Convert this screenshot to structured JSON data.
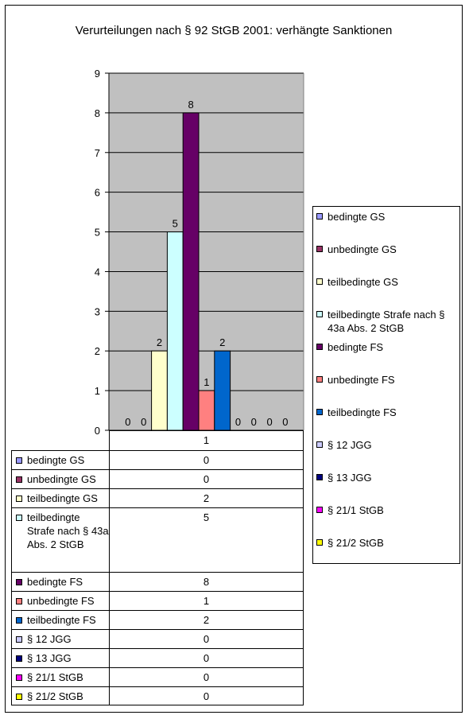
{
  "chart_data": {
    "type": "bar",
    "title": "Verurteilungen nach § 92 StGB 2001: verhängte Sanktionen",
    "categories": [
      "1"
    ],
    "ylim": [
      0,
      9
    ],
    "yticks": [
      "0",
      "1",
      "2",
      "3",
      "4",
      "5",
      "6",
      "7",
      "8",
      "9"
    ],
    "grid": true,
    "legend_position": "right",
    "series": [
      {
        "name": "bedingte GS",
        "values": [
          0
        ],
        "color": "#9999ff"
      },
      {
        "name": "unbedingte GS",
        "values": [
          0
        ],
        "color": "#993366"
      },
      {
        "name": "teilbedingte GS",
        "values": [
          2
        ],
        "color": "#ffffcc"
      },
      {
        "name": "teilbedingte Strafe nach § 43a Abs. 2 StGB",
        "values": [
          5
        ],
        "color": "#ccffff"
      },
      {
        "name": "bedingte FS",
        "values": [
          8
        ],
        "color": "#660066"
      },
      {
        "name": "unbedingte FS",
        "values": [
          1
        ],
        "color": "#ff8080"
      },
      {
        "name": "teilbedingte FS",
        "values": [
          2
        ],
        "color": "#0066cc"
      },
      {
        "name": "§ 12 JGG",
        "values": [
          0
        ],
        "color": "#ccccff"
      },
      {
        "name": "§ 13 JGG",
        "values": [
          0
        ],
        "color": "#000080"
      },
      {
        "name": "§ 21/1 StGB",
        "values": [
          0
        ],
        "color": "#ff00ff"
      },
      {
        "name": "§ 21/2 StGB",
        "values": [
          0
        ],
        "color": "#ffff00"
      }
    ],
    "data_labels": [
      "0",
      "0",
      "2",
      "5",
      "8",
      "1",
      "2",
      "0",
      "0",
      "0",
      "0"
    ],
    "table_values": [
      "0",
      "0",
      "2",
      "5",
      "8",
      "1",
      "2",
      "0",
      "0",
      "0",
      "0"
    ],
    "plot_background": "#c0c0c0"
  }
}
